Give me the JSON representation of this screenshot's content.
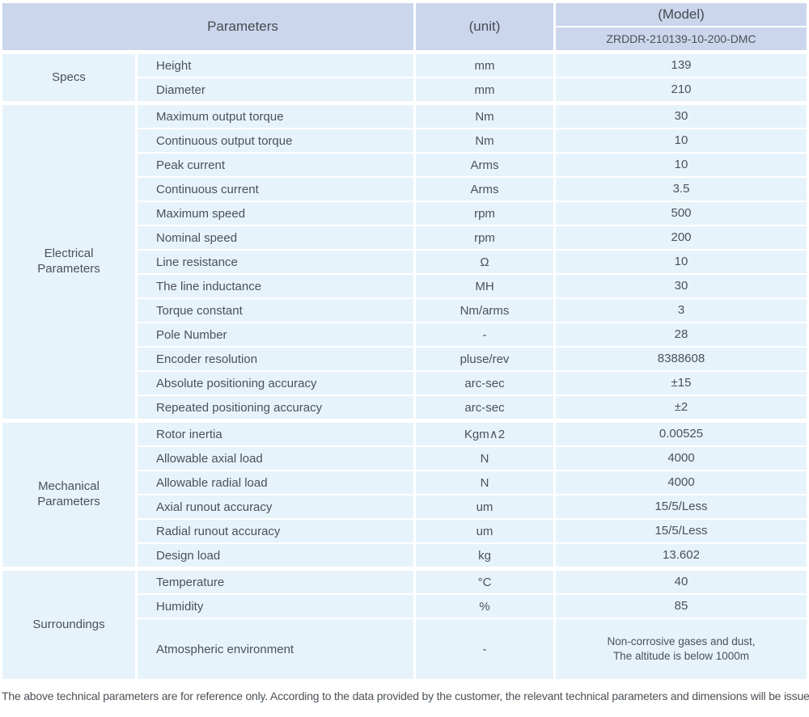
{
  "header": {
    "parameters": "Parameters",
    "unit": "(unit)",
    "model": "(Model)",
    "model_value": "ZRDDR-210139-10-200-DMC"
  },
  "colors": {
    "header_bg": "#cbd6ec",
    "cell_bg": "#e7f3fb",
    "text": "#4b5157"
  },
  "sections": [
    {
      "category": "Specs",
      "rows": [
        {
          "param": "Height",
          "unit": "mm",
          "value": "139"
        },
        {
          "param": "Diameter",
          "unit": "mm",
          "value": "210"
        }
      ]
    },
    {
      "category": "Electrical\nParameters",
      "rows": [
        {
          "param": "Maximum output torque",
          "unit": "Nm",
          "value": "30"
        },
        {
          "param": "Continuous output torque",
          "unit": "Nm",
          "value": "10"
        },
        {
          "param": "Peak current",
          "unit": "Arms",
          "value": "10"
        },
        {
          "param": "Continuous current",
          "unit": "Arms",
          "value": "3.5"
        },
        {
          "param": "Maximum speed",
          "unit": "rpm",
          "value": "500"
        },
        {
          "param": "Nominal speed",
          "unit": "rpm",
          "value": "200"
        },
        {
          "param": "Line resistance",
          "unit": "Ω",
          "value": "10"
        },
        {
          "param": "The line inductance",
          "unit": "MH",
          "value": "30"
        },
        {
          "param": "Torque constant",
          "unit": "Nm/arms",
          "value": "3"
        },
        {
          "param": "Pole Number",
          "unit": "-",
          "value": "28"
        },
        {
          "param": "Encoder resolution",
          "unit": "pluse/rev",
          "value": "8388608"
        },
        {
          "param": "Absolute positioning accuracy",
          "unit": "arc-sec",
          "value": "±15"
        },
        {
          "param": "Repeated positioning accuracy",
          "unit": "arc-sec",
          "value": "±2"
        }
      ]
    },
    {
      "category": "Mechanical\nParameters",
      "rows": [
        {
          "param": "Rotor inertia",
          "unit": "Kgm∧2",
          "value": "0.00525"
        },
        {
          "param": "Allowable axial load",
          "unit": "N",
          "value": "4000"
        },
        {
          "param": "Allowable radial load",
          "unit": "N",
          "value": "4000"
        },
        {
          "param": "Axial runout accuracy",
          "unit": "um",
          "value": "15/5/Less"
        },
        {
          "param": "Radial runout accuracy",
          "unit": "um",
          "value": "15/5/Less"
        },
        {
          "param": "Design load",
          "unit": "kg",
          "value": "13.602"
        }
      ]
    },
    {
      "category": "Surroundings",
      "rows": [
        {
          "param": "Temperature",
          "unit": "°C",
          "value": "40"
        },
        {
          "param": "Humidity",
          "unit": "%",
          "value": "85"
        },
        {
          "param": "Atmospheric environment",
          "unit": "-",
          "value": "Non-corrosive gases and dust,\nThe altitude is below 1000m"
        }
      ]
    }
  ],
  "footnote": "The above technical parameters are for reference only. According to the data provided by the customer, the relevant technical parameters and dimensions will be issued."
}
